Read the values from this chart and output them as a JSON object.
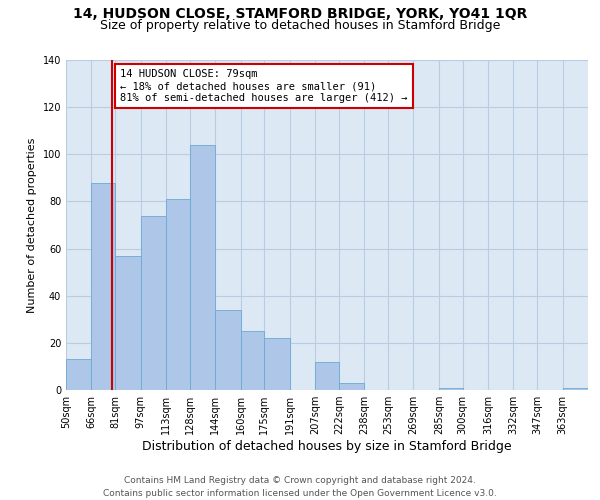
{
  "title": "14, HUDSON CLOSE, STAMFORD BRIDGE, YORK, YO41 1QR",
  "subtitle": "Size of property relative to detached houses in Stamford Bridge",
  "xlabel": "Distribution of detached houses by size in Stamford Bridge",
  "ylabel": "Number of detached properties",
  "footer_line1": "Contains HM Land Registry data © Crown copyright and database right 2024.",
  "footer_line2": "Contains public sector information licensed under the Open Government Licence v3.0.",
  "bin_labels": [
    "50sqm",
    "66sqm",
    "81sqm",
    "97sqm",
    "113sqm",
    "128sqm",
    "144sqm",
    "160sqm",
    "175sqm",
    "191sqm",
    "207sqm",
    "222sqm",
    "238sqm",
    "253sqm",
    "269sqm",
    "285sqm",
    "300sqm",
    "316sqm",
    "332sqm",
    "347sqm",
    "363sqm"
  ],
  "bin_edges": [
    50,
    66,
    81,
    97,
    113,
    128,
    144,
    160,
    175,
    191,
    207,
    222,
    238,
    253,
    269,
    285,
    300,
    316,
    332,
    347,
    363,
    379
  ],
  "counts": [
    13,
    88,
    57,
    74,
    81,
    104,
    34,
    25,
    22,
    0,
    12,
    3,
    0,
    0,
    0,
    1,
    0,
    0,
    0,
    0,
    1
  ],
  "bar_color": "#aec6e8",
  "bar_edge_color": "#6aaad4",
  "property_size": 79,
  "red_line_color": "#cc0000",
  "annotation_text_line1": "14 HUDSON CLOSE: 79sqm",
  "annotation_text_line2": "← 18% of detached houses are smaller (91)",
  "annotation_text_line3": "81% of semi-detached houses are larger (412) →",
  "annotation_box_color": "#ffffff",
  "annotation_box_edge_color": "#cc0000",
  "ylim": [
    0,
    140
  ],
  "yticks": [
    0,
    20,
    40,
    60,
    80,
    100,
    120,
    140
  ],
  "background_color": "#ffffff",
  "plot_bg_color": "#dde8f5",
  "grid_color": "#b8cee0",
  "title_fontsize": 10,
  "subtitle_fontsize": 9,
  "xlabel_fontsize": 9,
  "ylabel_fontsize": 8,
  "tick_fontsize": 7,
  "annotation_fontsize": 7.5,
  "footer_fontsize": 6.5
}
